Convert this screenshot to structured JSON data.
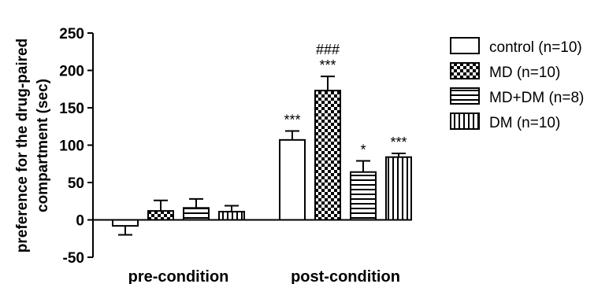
{
  "chart_data": {
    "type": "bar",
    "ylabel_line1": "preference for the drug-paired",
    "ylabel_line2": "compartment (sec)",
    "ylim": [
      -50,
      250
    ],
    "yticks": [
      -50,
      0,
      50,
      100,
      150,
      200,
      250
    ],
    "categories": [
      "pre-condition",
      "post-condition"
    ],
    "series": [
      {
        "name": "control (n=10)",
        "pattern": "open",
        "values": [
          -8,
          107
        ],
        "errors": [
          12,
          12
        ],
        "annotations": [
          "",
          "***"
        ]
      },
      {
        "name": "MD (n=10)",
        "pattern": "checker",
        "values": [
          12,
          173
        ],
        "errors": [
          14,
          19
        ],
        "annotations": [
          "",
          "###\n***"
        ]
      },
      {
        "name": "MD+DM (n=8)",
        "pattern": "horizontal-stripes",
        "values": [
          16,
          64
        ],
        "errors": [
          12,
          15
        ],
        "annotations": [
          "",
          "*"
        ]
      },
      {
        "name": "DM (n=10)",
        "pattern": "vertical-stripes",
        "values": [
          11,
          84
        ],
        "errors": [
          8,
          5
        ],
        "annotations": [
          "",
          "***"
        ]
      }
    ],
    "grid": false,
    "legend_position": "right"
  }
}
